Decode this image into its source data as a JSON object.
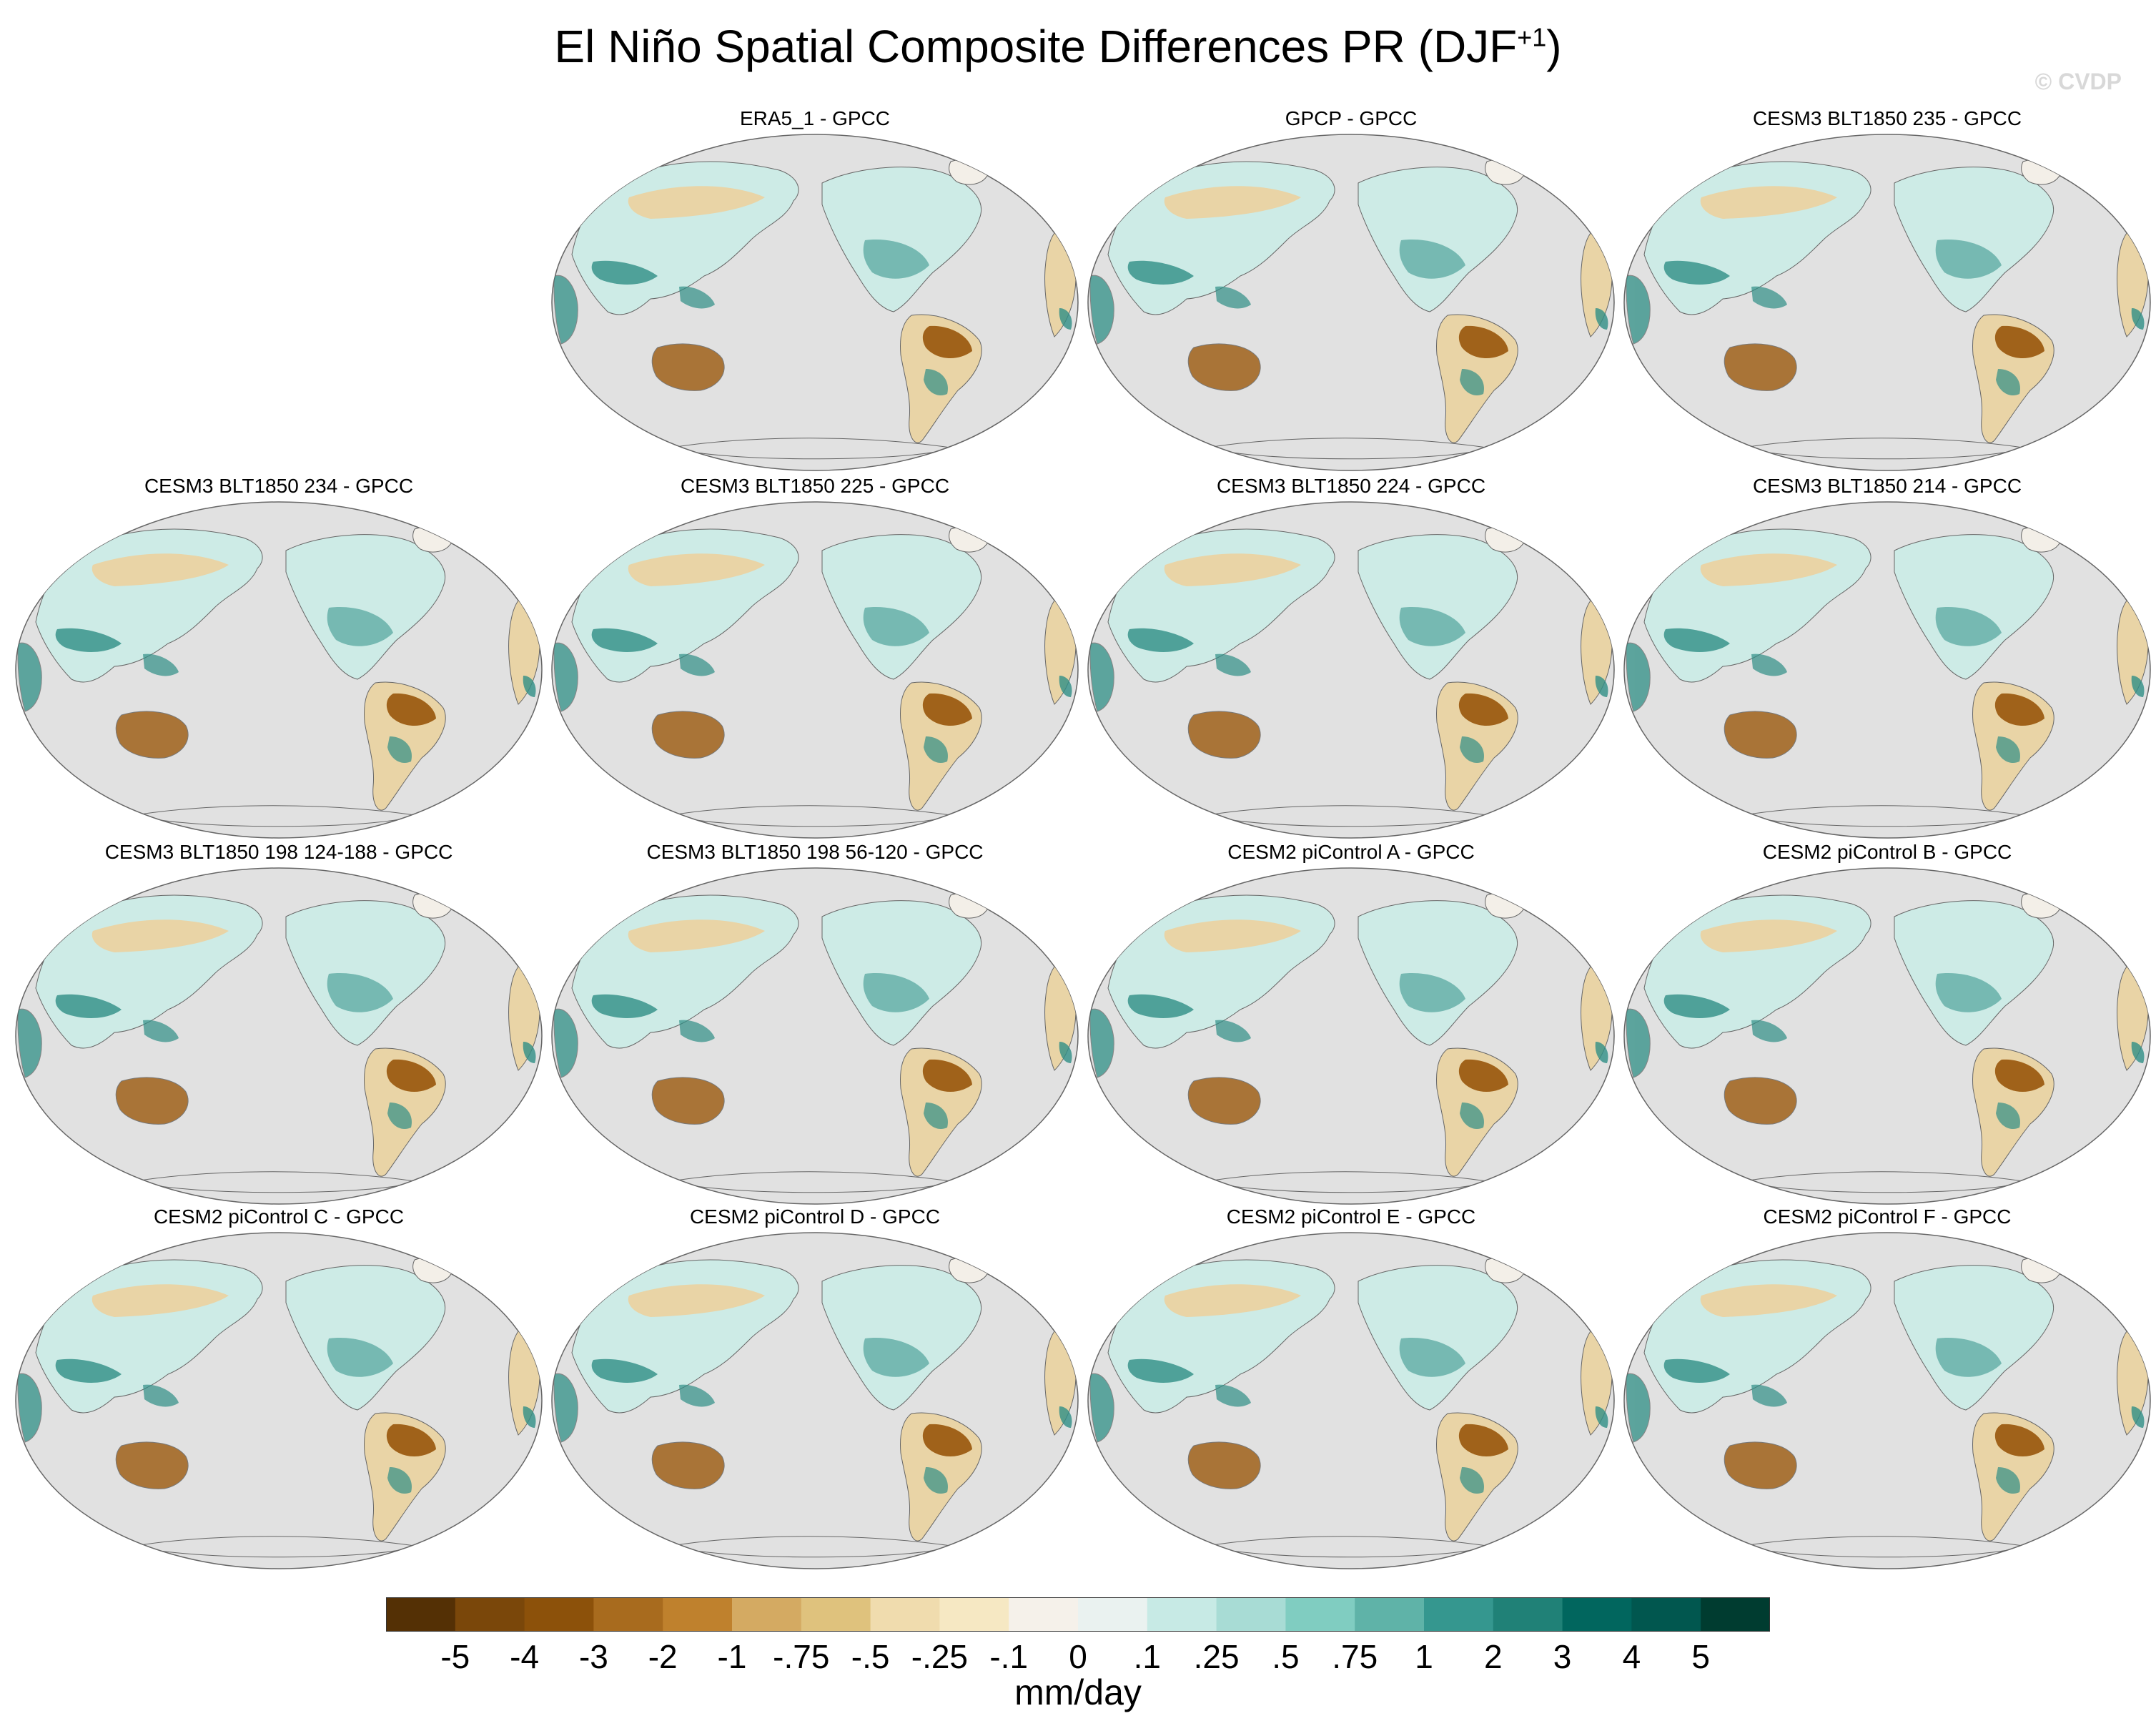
{
  "title": {
    "text": "El Niño Spatial Composite Differences PR (DJF",
    "superscript": "+1",
    "close": ")"
  },
  "watermark": "© CVDP",
  "panels": [
    {
      "label": "ERA5_1 - GPCC"
    },
    {
      "label": "GPCP - GPCC"
    },
    {
      "label": "CESM3 BLT1850 235 - GPCC"
    },
    {
      "label": "CESM3 BLT1850 234 - GPCC"
    },
    {
      "label": "CESM3 BLT1850 225 - GPCC"
    },
    {
      "label": "CESM3 BLT1850 224 - GPCC"
    },
    {
      "label": "CESM3 BLT1850 214 - GPCC"
    },
    {
      "label": "CESM3 BLT1850 198 124-188 - GPCC"
    },
    {
      "label": "CESM3 BLT1850 198 56-120 - GPCC"
    },
    {
      "label": "CESM2 piControl A - GPCC"
    },
    {
      "label": "CESM2 piControl B - GPCC"
    },
    {
      "label": "CESM2 piControl C - GPCC"
    },
    {
      "label": "CESM2 piControl D - GPCC"
    },
    {
      "label": "CESM2 piControl E - GPCC"
    },
    {
      "label": "CESM2 piControl F - GPCC"
    }
  ],
  "colorbar": {
    "colors": [
      "#543005",
      "#7a470a",
      "#8c510a",
      "#a86b1e",
      "#bf812d",
      "#d4aa62",
      "#dfc27d",
      "#f0dcae",
      "#f6e8c3",
      "#f5f1ea",
      "#eaf2f0",
      "#c7eae5",
      "#a8dcd5",
      "#80cdc1",
      "#5fb3a8",
      "#35978f",
      "#208177",
      "#01665e",
      "#01574f",
      "#003c30"
    ],
    "ticks": [
      "-5",
      "-4",
      "-3",
      "-2",
      "-1",
      "-.75",
      "-.5",
      "-.25",
      "-.1",
      "0",
      ".1",
      ".25",
      ".5",
      ".75",
      "1",
      "2",
      "3",
      "4",
      "5"
    ],
    "units": "mm/day"
  },
  "colors": {
    "ocean": "#e1e1e1",
    "outline": "#666666",
    "dry_strong": "#a0621a",
    "dry_weak": "#e9d4a6",
    "wet_weak": "#cdebe6",
    "wet_strong": "#2f8f86"
  }
}
